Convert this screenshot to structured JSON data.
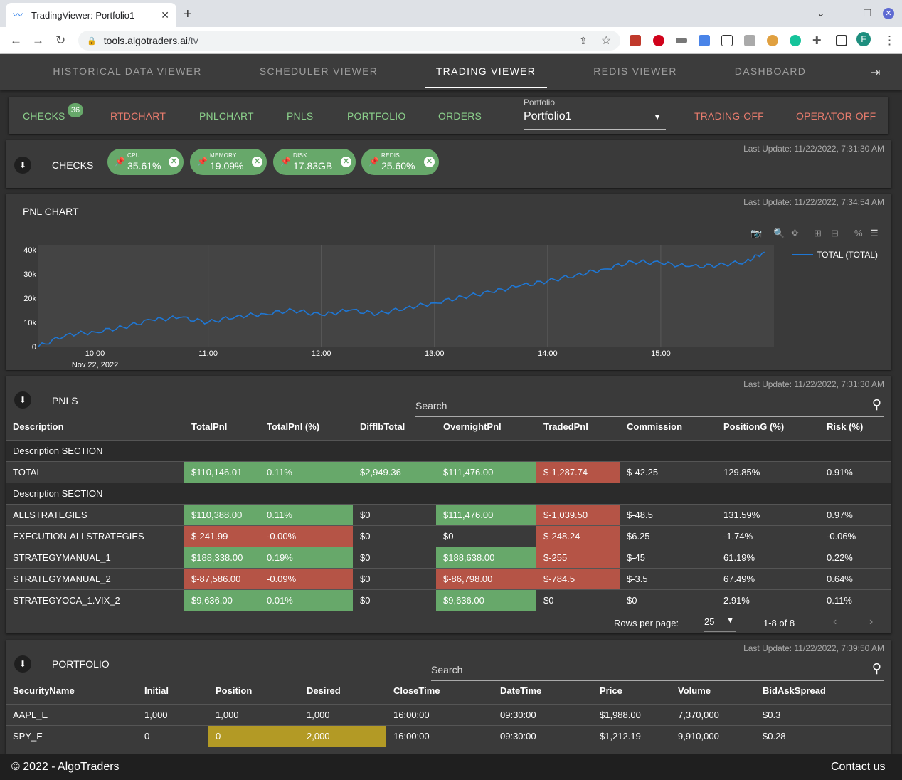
{
  "browser": {
    "tab_title": "TradingViewer: Portfolio1",
    "url_domain": "tools.algotraders.ai",
    "url_path": "/tv",
    "profile_initial": "F"
  },
  "nav": {
    "tabs": [
      "HISTORICAL DATA VIEWER",
      "SCHEDULER VIEWER",
      "TRADING VIEWER",
      "REDIS VIEWER",
      "DASHBOARD"
    ],
    "active": "TRADING VIEWER"
  },
  "toolbar": {
    "checks": "CHECKS",
    "checks_badge": "36",
    "rtdchart": "RTDCHART",
    "pnlchart": "PNLCHART",
    "pnls": "PNLS",
    "portfolio": "PORTFOLIO",
    "orders": "ORDERS",
    "portfolio_label": "Portfolio",
    "portfolio_value": "Portfolio1",
    "trading_off": "TRADING-OFF",
    "operator_off": "OPERATOR-OFF"
  },
  "checks_panel": {
    "title": "CHECKS",
    "last_update": "Last Update: 11/22/2022, 7:31:30 AM",
    "chips": [
      {
        "label": "CPU",
        "value": "35.61%"
      },
      {
        "label": "MEMORY",
        "value": "19.09%"
      },
      {
        "label": "DISK",
        "value": "17.83GB"
      },
      {
        "label": "REDIS",
        "value": "25.60%"
      }
    ]
  },
  "pnl_chart_panel": {
    "title": "PNL CHART",
    "last_update": "Last Update: 11/22/2022, 7:34:54 AM"
  },
  "chart_data": {
    "type": "line",
    "title": "",
    "xlabel": "",
    "ylabel": "",
    "x_ticks": [
      "10:00",
      "11:00",
      "12:00",
      "13:00",
      "14:00",
      "15:00"
    ],
    "x_date_label": "Nov 22, 2022",
    "y_ticks": [
      "0",
      "10k",
      "20k",
      "30k",
      "40k"
    ],
    "ylim": [
      0,
      42000
    ],
    "xlim": [
      "09:30",
      "16:00"
    ],
    "grid": true,
    "legend": "right",
    "series": [
      {
        "name": "TOTAL (TOTAL)",
        "color": "#1f77d4",
        "x": [
          "09:30",
          "09:45",
          "10:00",
          "10:15",
          "10:30",
          "10:45",
          "11:00",
          "11:15",
          "11:30",
          "11:45",
          "12:00",
          "12:15",
          "12:30",
          "12:45",
          "13:00",
          "13:15",
          "13:30",
          "13:45",
          "14:00",
          "14:15",
          "14:30",
          "14:45",
          "15:00",
          "15:15",
          "15:30",
          "15:45",
          "15:55"
        ],
        "y": [
          0,
          5000,
          6000,
          8000,
          11000,
          12000,
          10000,
          12500,
          13500,
          15000,
          13000,
          15000,
          13500,
          16000,
          18000,
          20500,
          22500,
          25000,
          27000,
          29500,
          32000,
          35000,
          34500,
          33000,
          33500,
          35000,
          39000
        ]
      }
    ]
  },
  "pnls_panel": {
    "title": "PNLS",
    "last_update": "Last Update: 11/22/2022, 7:31:30 AM",
    "search_placeholder": "Search",
    "columns": [
      "Description",
      "TotalPnl",
      "TotalPnl (%)",
      "DifflbTotal",
      "OvernightPnl",
      "TradedPnl",
      "Commission",
      "PositionG (%)",
      "Risk (%)"
    ],
    "rows": [
      {
        "section": "Description SECTION"
      },
      {
        "cells": [
          "TOTAL",
          "$110,146.01",
          "0.11%",
          "$2,949.36",
          "$111,476.00",
          "$-1,287.74",
          "$-42.25",
          "129.85%",
          "0.91%"
        ],
        "colors": [
          "",
          "g",
          "g",
          "g",
          "g",
          "r",
          "",
          "",
          ""
        ]
      },
      {
        "section": "Description SECTION"
      },
      {
        "cells": [
          "ALLSTRATEGIES",
          "$110,388.00",
          "0.11%",
          "$0",
          "$111,476.00",
          "$-1,039.50",
          "$-48.5",
          "131.59%",
          "0.97%"
        ],
        "colors": [
          "",
          "g",
          "g",
          "",
          "g",
          "r",
          "",
          "",
          ""
        ]
      },
      {
        "cells": [
          "EXECUTION-ALLSTRATEGIES",
          "$-241.99",
          "-0.00%",
          "$0",
          "$0",
          "$-248.24",
          "$6.25",
          "-1.74%",
          "-0.06%"
        ],
        "colors": [
          "",
          "r",
          "r",
          "",
          "",
          "r",
          "",
          "",
          ""
        ]
      },
      {
        "cells": [
          "STRATEGYMANUAL_1",
          "$188,338.00",
          "0.19%",
          "$0",
          "$188,638.00",
          "$-255",
          "$-45",
          "61.19%",
          "0.22%"
        ],
        "colors": [
          "",
          "g",
          "g",
          "",
          "g",
          "r",
          "",
          "",
          ""
        ]
      },
      {
        "cells": [
          "STRATEGYMANUAL_2",
          "$-87,586.00",
          "-0.09%",
          "$0",
          "$-86,798.00",
          "$-784.5",
          "$-3.5",
          "67.49%",
          "0.64%"
        ],
        "colors": [
          "",
          "r",
          "r",
          "",
          "r",
          "r",
          "",
          "",
          ""
        ]
      },
      {
        "cells": [
          "STRATEGYOCA_1.VIX_2",
          "$9,636.00",
          "0.01%",
          "$0",
          "$9,636.00",
          "$0",
          "$0",
          "2.91%",
          "0.11%"
        ],
        "colors": [
          "",
          "g",
          "g",
          "",
          "g",
          "",
          "",
          "",
          ""
        ]
      }
    ],
    "rows_per_page_label": "Rows per page:",
    "rows_per_page": "25",
    "range": "1-8 of 8"
  },
  "portfolio_panel": {
    "title": "PORTFOLIO",
    "last_update": "Last Update: 11/22/2022, 7:39:50 AM",
    "search_placeholder": "Search",
    "columns": [
      "SecurityName",
      "Initial",
      "Position",
      "Desired",
      "CloseTime",
      "DateTime",
      "Price",
      "Volume",
      "BidAskSpread"
    ],
    "rows": [
      {
        "cells": [
          "AAPL_E",
          "1,000",
          "1,000",
          "1,000",
          "16:00:00",
          "09:30:00",
          "$1,988.00",
          "7,370,000",
          "$0.3"
        ],
        "colors": [
          "",
          "",
          "",
          "",
          "",
          "",
          "",
          "",
          ""
        ]
      },
      {
        "cells": [
          "SPY_E",
          "0",
          "0",
          "2,000",
          "16:00:00",
          "09:30:00",
          "$1,212.19",
          "9,910,000",
          "$0.28"
        ],
        "colors": [
          "",
          "",
          "y",
          "y",
          "",
          "",
          "",
          "",
          ""
        ]
      }
    ]
  },
  "footer": {
    "copyright": "© 2022 -",
    "brand_link": "AlgoTraders",
    "contact": "Contact us"
  }
}
